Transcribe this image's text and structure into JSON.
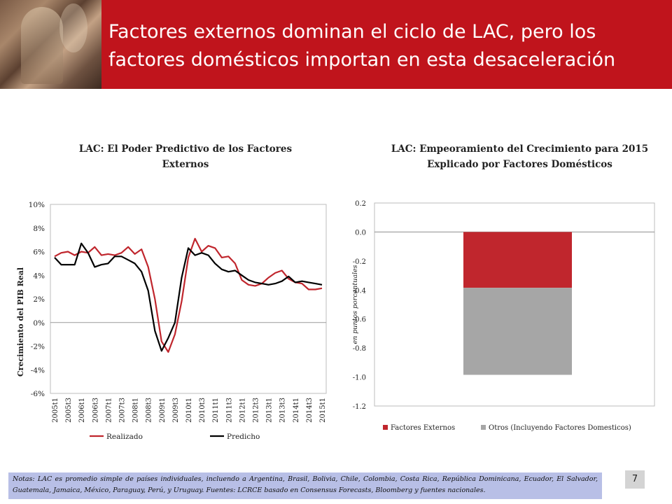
{
  "header": {
    "title": "Factores externos dominan el ciclo de LAC, pero los factores domésticos importan en esta desaceleración"
  },
  "left_chart_title": "LAC: El Poder Predictivo de los Factores Externos",
  "right_chart_title": "LAC: Empeoramiento del Crecimiento para 2015 Explicado por Factores Domésticos",
  "notes": "Notas: LAC es promedio simple de países individuales, incluendo a Argentina, Brasil, Bolivia, Chile, Colombia, Costa Rica, República Dominicana, Ecuador, El Salvador, Guatemala, Jamaica, México, Paraguay, Perú, y Uruguay. Fuentes: LCRCE basado en Consensus Forecasts, Bloomberg y fuentes nacionales.",
  "page_number": "7",
  "colors": {
    "header": "#c0141c",
    "realizado": "#c0262d",
    "predicho": "#000000",
    "externos": "#c0262d",
    "otros": "#a6a6a6"
  },
  "chart_data": [
    {
      "type": "line",
      "title": "LAC: El Poder Predictivo de los Factores Externos",
      "ylabel": "Crecimiento del PIB Real",
      "xlabel": "",
      "ylim": [
        -6,
        10
      ],
      "y_ticks": [
        "10%",
        "8%",
        "6%",
        "4%",
        "2%",
        "0%",
        "-2%",
        "-4%",
        "-6%"
      ],
      "x_tick_labels": [
        "2005t1",
        "2005t3",
        "2006t1",
        "2006t3",
        "2007t1",
        "2007t3",
        "2008t1",
        "2008t3",
        "2009t1",
        "2009t3",
        "2010t1",
        "2010t3",
        "2011t1",
        "2011t3",
        "2012t1",
        "2012t3",
        "2013t1",
        "2013t3",
        "2014t1",
        "2014t3",
        "2015t1"
      ],
      "x": [
        "2005t1",
        "2005t2",
        "2005t3",
        "2005t4",
        "2006t1",
        "2006t2",
        "2006t3",
        "2006t4",
        "2007t1",
        "2007t2",
        "2007t3",
        "2007t4",
        "2008t1",
        "2008t2",
        "2008t3",
        "2008t4",
        "2009t1",
        "2009t2",
        "2009t3",
        "2009t4",
        "2010t1",
        "2010t2",
        "2010t3",
        "2010t4",
        "2011t1",
        "2011t2",
        "2011t3",
        "2011t4",
        "2012t1",
        "2012t2",
        "2012t3",
        "2012t4",
        "2013t1",
        "2013t2",
        "2013t3",
        "2013t4",
        "2014t1",
        "2014t2",
        "2014t3",
        "2014t4",
        "2015t1"
      ],
      "series": [
        {
          "name": "Realizado",
          "values": [
            5.6,
            5.9,
            6.0,
            5.7,
            6.0,
            5.9,
            6.4,
            5.7,
            5.8,
            5.7,
            5.9,
            6.4,
            5.8,
            6.2,
            4.7,
            2.0,
            -1.6,
            -2.5,
            -1.0,
            1.8,
            5.5,
            7.1,
            6.0,
            6.5,
            6.3,
            5.5,
            5.6,
            5.0,
            3.6,
            3.2,
            3.1,
            3.3,
            3.8,
            4.2,
            4.4,
            3.7,
            3.4,
            3.3,
            2.8,
            2.8,
            2.9
          ]
        },
        {
          "name": "Predicho",
          "values": [
            5.5,
            4.9,
            4.9,
            4.9,
            6.7,
            5.9,
            4.7,
            4.9,
            5.0,
            5.6,
            5.6,
            5.3,
            5.0,
            4.3,
            2.7,
            -0.7,
            -2.4,
            -1.3,
            0.0,
            3.8,
            6.3,
            5.7,
            5.9,
            5.7,
            5.0,
            4.5,
            4.3,
            4.4,
            4.0,
            3.6,
            3.4,
            3.3,
            3.2,
            3.3,
            3.5,
            3.9,
            3.4,
            3.5,
            3.4,
            3.3,
            3.2
          ]
        }
      ],
      "legend": "bottom"
    },
    {
      "type": "bar",
      "title": "LAC: Empeoramiento del Crecimiento para 2015 Explicado por Factores Domésticos",
      "ylabel": "en puntos porcentuales",
      "xlabel": "",
      "ylim": [
        -1.2,
        0.2
      ],
      "y_ticks": [
        "0.2",
        "0.0",
        "-0.2",
        "-0.4",
        "-0.6",
        "-0.8",
        "-1.0",
        "-1.2"
      ],
      "stacked": true,
      "series": [
        {
          "name": "Factores Externos",
          "values": [
            -0.385
          ]
        },
        {
          "name": "Otros (Incluyendo Factores Domesticos)",
          "values": [
            -0.6
          ]
        }
      ],
      "legend": "bottom"
    }
  ]
}
